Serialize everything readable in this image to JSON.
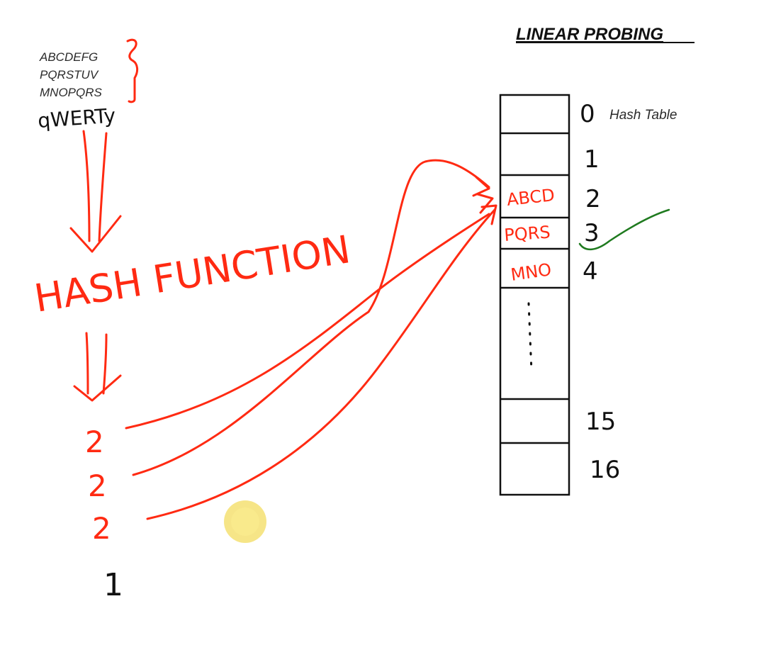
{
  "title": "LINEAR PROBING",
  "keys": {
    "typed": [
      "ABCDEFG",
      "PQRSTUV",
      "MNOPQRS"
    ],
    "handwritten": "qWERTy"
  },
  "hash_function_label": "HASH FUNCTION",
  "hash_values": [
    "2",
    "2",
    "2",
    "1"
  ],
  "table": {
    "label": "Hash Table",
    "slots": [
      {
        "index": "0",
        "content": ""
      },
      {
        "index": "1",
        "content": ""
      },
      {
        "index": "2",
        "content": "ABCD"
      },
      {
        "index": "3",
        "content": "PQRS"
      },
      {
        "index": "4",
        "content": "MNO"
      },
      {
        "index": "",
        "content": ""
      },
      {
        "index": "15",
        "content": ""
      },
      {
        "index": "16",
        "content": ""
      }
    ]
  },
  "colors": {
    "ink_red": "#ff2a12",
    "ink_black": "#111111",
    "ink_green": "#1f7a1f",
    "cursor_yellow": "#f5e27a"
  }
}
